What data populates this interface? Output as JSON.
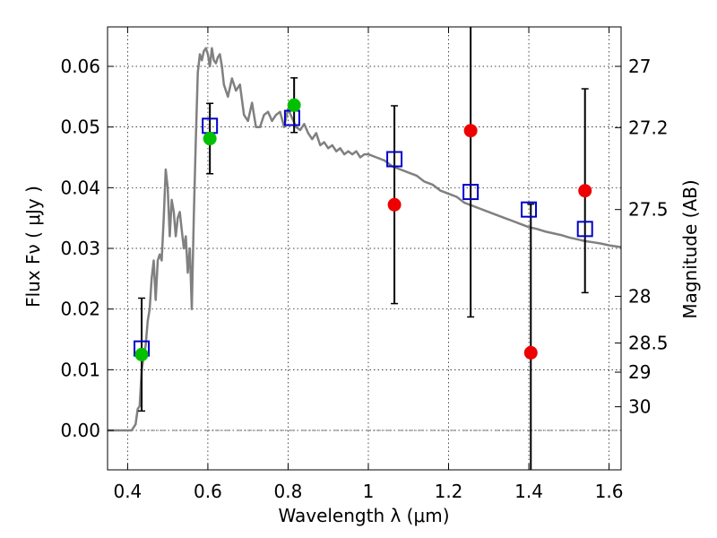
{
  "chart_data": {
    "type": "scatter",
    "xlabel": "Wavelength  λ (μm)",
    "ylabel": "Flux  Fν  ( μJy )",
    "y2label": "Magnitude (AB)",
    "xlim": [
      0.35,
      1.63
    ],
    "ylim": [
      -0.0065,
      0.0665
    ],
    "grid": true,
    "x_ticks": [
      0.4,
      0.6,
      0.8,
      1.0,
      1.2,
      1.4,
      1.6
    ],
    "x_tick_labels": [
      "0.4",
      "0.6",
      "0.8",
      "1",
      "1.2",
      "1.4",
      "1.6"
    ],
    "y_ticks": [
      0.0,
      0.01,
      0.02,
      0.03,
      0.04,
      0.05,
      0.06
    ],
    "y_tick_labels": [
      "0.00",
      "0.01",
      "0.02",
      "0.03",
      "0.04",
      "0.05",
      "0.06"
    ],
    "mag_ticks": [
      {
        "label": "27",
        "flux": 0.06
      },
      {
        "label": "27.2",
        "flux": 0.0499
      },
      {
        "label": "27.5",
        "flux": 0.0364
      },
      {
        "label": "28",
        "flux": 0.0221
      },
      {
        "label": "28.5",
        "flux": 0.0144
      },
      {
        "label": "29",
        "flux": 0.0096
      },
      {
        "label": "30",
        "flux": 0.0039
      }
    ],
    "colors": {
      "model": "#808080",
      "model_points": "#0000cc",
      "green_points": "#00c000",
      "red_points": "#ee0000",
      "errorbar": "#000000",
      "grid": "#000000",
      "zero_line": "#555555"
    },
    "series": [
      {
        "name": "model_spectrum",
        "kind": "line",
        "x": [
          0.35,
          0.41,
          0.42,
          0.425,
          0.43,
          0.435,
          0.44,
          0.445,
          0.45,
          0.455,
          0.46,
          0.465,
          0.47,
          0.475,
          0.48,
          0.485,
          0.49,
          0.495,
          0.5,
          0.505,
          0.51,
          0.515,
          0.52,
          0.525,
          0.53,
          0.535,
          0.54,
          0.545,
          0.55,
          0.555,
          0.56,
          0.565,
          0.57,
          0.575,
          0.58,
          0.585,
          0.59,
          0.595,
          0.6,
          0.605,
          0.61,
          0.615,
          0.62,
          0.625,
          0.63,
          0.635,
          0.64,
          0.65,
          0.66,
          0.67,
          0.68,
          0.69,
          0.7,
          0.71,
          0.72,
          0.73,
          0.74,
          0.75,
          0.76,
          0.77,
          0.78,
          0.79,
          0.8,
          0.81,
          0.82,
          0.83,
          0.84,
          0.85,
          0.86,
          0.87,
          0.88,
          0.89,
          0.9,
          0.91,
          0.92,
          0.93,
          0.94,
          0.95,
          0.96,
          0.97,
          0.98,
          0.99,
          1.0,
          1.02,
          1.04,
          1.06,
          1.08,
          1.1,
          1.12,
          1.14,
          1.16,
          1.18,
          1.2,
          1.22,
          1.24,
          1.26,
          1.28,
          1.3,
          1.32,
          1.34,
          1.36,
          1.38,
          1.4,
          1.42,
          1.44,
          1.46,
          1.48,
          1.5,
          1.52,
          1.54,
          1.56,
          1.58,
          1.6,
          1.63
        ],
        "y": [
          0.0,
          0.0,
          0.001,
          0.0035,
          0.004,
          0.01,
          0.012,
          0.014,
          0.018,
          0.02,
          0.025,
          0.028,
          0.0215,
          0.028,
          0.029,
          0.028,
          0.035,
          0.043,
          0.04,
          0.032,
          0.038,
          0.036,
          0.032,
          0.035,
          0.036,
          0.033,
          0.03,
          0.032,
          0.026,
          0.03,
          0.02,
          0.035,
          0.048,
          0.059,
          0.062,
          0.061,
          0.0625,
          0.063,
          0.062,
          0.06,
          0.063,
          0.061,
          0.0605,
          0.0615,
          0.062,
          0.06,
          0.057,
          0.055,
          0.058,
          0.056,
          0.057,
          0.052,
          0.051,
          0.054,
          0.05,
          0.05,
          0.052,
          0.0525,
          0.051,
          0.052,
          0.0525,
          0.05,
          0.053,
          0.0515,
          0.05,
          0.0495,
          0.0505,
          0.049,
          0.048,
          0.049,
          0.047,
          0.0475,
          0.0465,
          0.047,
          0.046,
          0.0465,
          0.0455,
          0.046,
          0.0455,
          0.046,
          0.045,
          0.0455,
          0.0455,
          0.045,
          0.0445,
          0.0435,
          0.043,
          0.0425,
          0.042,
          0.041,
          0.0405,
          0.0395,
          0.039,
          0.0385,
          0.0375,
          0.037,
          0.0365,
          0.036,
          0.0355,
          0.035,
          0.0345,
          0.034,
          0.0335,
          0.0332,
          0.0328,
          0.0325,
          0.0322,
          0.0318,
          0.0315,
          0.0312,
          0.031,
          0.0308,
          0.0305,
          0.0302
        ]
      },
      {
        "name": "model_band_flux",
        "kind": "open_square",
        "points": [
          {
            "x": 0.435,
            "y": 0.0135
          },
          {
            "x": 0.605,
            "y": 0.0502
          },
          {
            "x": 0.81,
            "y": 0.0515
          },
          {
            "x": 1.065,
            "y": 0.0447
          },
          {
            "x": 1.255,
            "y": 0.0393
          },
          {
            "x": 1.4,
            "y": 0.0364
          },
          {
            "x": 1.54,
            "y": 0.0332
          }
        ]
      },
      {
        "name": "detections",
        "kind": "filled_circle",
        "color_key": "green_points",
        "points": [
          {
            "x": 0.435,
            "y": 0.0125,
            "err": 0.0093
          },
          {
            "x": 0.605,
            "y": 0.0481,
            "err": 0.0058
          },
          {
            "x": 0.815,
            "y": 0.0536,
            "err": 0.0045
          }
        ]
      },
      {
        "name": "non_detections",
        "kind": "filled_circle",
        "color_key": "red_points",
        "points": [
          {
            "x": 1.065,
            "y": 0.0372,
            "err": 0.0163
          },
          {
            "x": 1.255,
            "y": 0.0494,
            "err": 0.0307
          },
          {
            "x": 1.405,
            "y": 0.0128,
            "err": 0.0245
          },
          {
            "x": 1.54,
            "y": 0.0395,
            "err": 0.0168
          }
        ]
      }
    ]
  }
}
